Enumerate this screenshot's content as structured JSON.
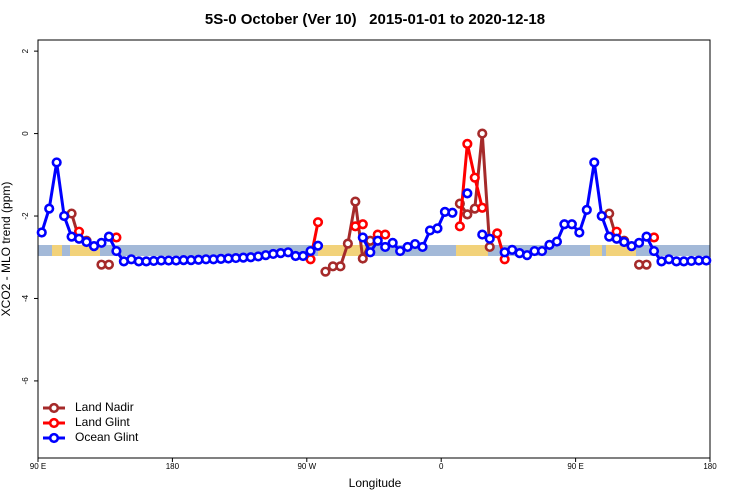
{
  "chart_data": {
    "type": "line",
    "title": "5S-0 October (Ver 10)   2015-01-01 to 2020-12-18",
    "x_label": "Longitude",
    "y_label": "XCO2 - MLO trend (ppm)",
    "xlim": [
      90,
      540
    ],
    "xticks": [
      {
        "value": 90,
        "label": "90 E"
      },
      180,
      {
        "value": 270,
        "label": "90 W"
      },
      {
        "value": 360,
        "label": "0"
      },
      {
        "value": 450,
        "label": "90 E"
      },
      {
        "value": 540,
        "label": "180"
      }
    ],
    "ylim": [
      -7.87,
      2.27
    ],
    "yticks": [
      2,
      0,
      -2,
      -4,
      -6
    ],
    "legend": "bottom-left",
    "x": [
      92.5,
      97.5,
      102.5,
      107.5,
      112.5,
      117.5,
      122.5,
      127.5,
      132.5,
      137.5,
      142.5,
      147.5,
      152.5,
      157.5,
      162.5,
      167.5,
      172.5,
      177.5,
      182.5,
      187.5,
      192.5,
      197.5,
      202.5,
      207.5,
      212.5,
      217.5,
      222.5,
      227.5,
      232.5,
      237.5,
      242.5,
      247.5,
      252.5,
      257.5,
      262.5,
      267.5,
      272.5,
      277.5,
      282.5,
      287.5,
      292.5,
      297.5,
      302.5,
      307.5,
      312.5,
      317.5,
      322.5,
      327.5,
      332.5,
      337.5,
      342.5,
      347.5,
      352.5,
      357.5,
      362.5,
      367.5,
      372.5,
      377.5,
      382.5,
      387.5,
      392.5,
      397.5,
      402.5,
      407.5,
      412.5,
      417.5,
      422.5,
      427.5,
      432.5,
      437.5,
      442.5,
      447.5,
      452.5,
      457.5,
      462.5,
      467.5,
      472.5,
      477.5,
      482.5,
      487.5,
      492.5,
      497.5,
      502.5,
      507.5,
      512.5,
      517.5,
      522.5,
      527.5,
      532.5,
      537.5
    ],
    "series": [
      {
        "name": "Land Nadir",
        "color": "#a52a2a",
        "values": [
          null,
          null,
          null,
          null,
          -1.94,
          -2.55,
          -2.6,
          null,
          -3.18,
          -3.18,
          null,
          null,
          null,
          null,
          null,
          null,
          null,
          null,
          null,
          null,
          null,
          null,
          null,
          null,
          null,
          null,
          null,
          null,
          null,
          null,
          null,
          null,
          null,
          null,
          null,
          null,
          null,
          null,
          -3.35,
          -3.22,
          -3.22,
          -2.67,
          -1.65,
          -3.03,
          -2.6,
          null,
          null,
          null,
          null,
          null,
          null,
          null,
          null,
          null,
          null,
          null,
          -1.7,
          -1.96,
          -1.82,
          0.0,
          -2.75,
          null,
          null,
          null,
          null,
          null,
          null,
          null,
          null,
          null,
          null,
          null,
          null,
          null,
          null,
          null,
          -1.94,
          -2.55,
          -2.6,
          null,
          -3.18,
          -3.18,
          null,
          null,
          null,
          null,
          null,
          null,
          null,
          null
        ]
      },
      {
        "name": "Land Glint",
        "color": "#ff0000",
        "values": [
          null,
          null,
          null,
          null,
          null,
          -2.38,
          null,
          null,
          null,
          null,
          -2.52,
          null,
          null,
          null,
          null,
          null,
          null,
          null,
          null,
          null,
          null,
          null,
          null,
          null,
          null,
          null,
          null,
          null,
          null,
          null,
          null,
          null,
          null,
          null,
          null,
          null,
          -3.05,
          -2.15,
          null,
          null,
          null,
          null,
          -2.25,
          -2.2,
          null,
          -2.45,
          -2.45,
          null,
          null,
          null,
          null,
          null,
          null,
          null,
          null,
          null,
          -2.25,
          -0.25,
          -1.07,
          -1.8,
          null,
          -2.42,
          -3.05,
          null,
          null,
          null,
          null,
          null,
          null,
          null,
          null,
          null,
          null,
          null,
          null,
          null,
          null,
          -2.38,
          null,
          null,
          null,
          null,
          -2.52,
          null,
          null,
          null,
          null,
          null,
          null,
          null
        ]
      },
      {
        "name": "Ocean Glint",
        "color": "#0000ff",
        "values": [
          -2.4,
          -1.82,
          -0.7,
          -2.0,
          -2.5,
          -2.55,
          -2.63,
          -2.73,
          -2.65,
          -2.5,
          -2.85,
          -3.1,
          -3.05,
          -3.1,
          -3.1,
          -3.09,
          -3.08,
          -3.08,
          -3.08,
          -3.07,
          -3.07,
          -3.06,
          -3.05,
          -3.05,
          -3.04,
          -3.03,
          -3.02,
          -3.01,
          -3.0,
          -2.98,
          -2.95,
          -2.92,
          -2.9,
          -2.88,
          -2.97,
          -2.97,
          -2.85,
          -2.72,
          null,
          null,
          null,
          null,
          null,
          -2.52,
          -2.88,
          -2.6,
          -2.75,
          -2.65,
          -2.85,
          -2.75,
          -2.68,
          -2.75,
          -2.35,
          -2.3,
          -1.9,
          -1.92,
          null,
          -1.45,
          null,
          -2.45,
          -2.55,
          null,
          -2.88,
          -2.82,
          -2.9,
          -2.95,
          -2.85,
          -2.85,
          -2.7,
          -2.62,
          -2.2,
          -2.2,
          -2.4,
          -1.85,
          -0.7,
          -2.0,
          -2.5,
          -2.55,
          -2.63,
          -2.73,
          -2.65,
          -2.5,
          -2.85,
          -3.1,
          -3.05,
          -3.1,
          -3.1,
          -3.09,
          -3.08,
          -3.08
        ]
      }
    ]
  }
}
